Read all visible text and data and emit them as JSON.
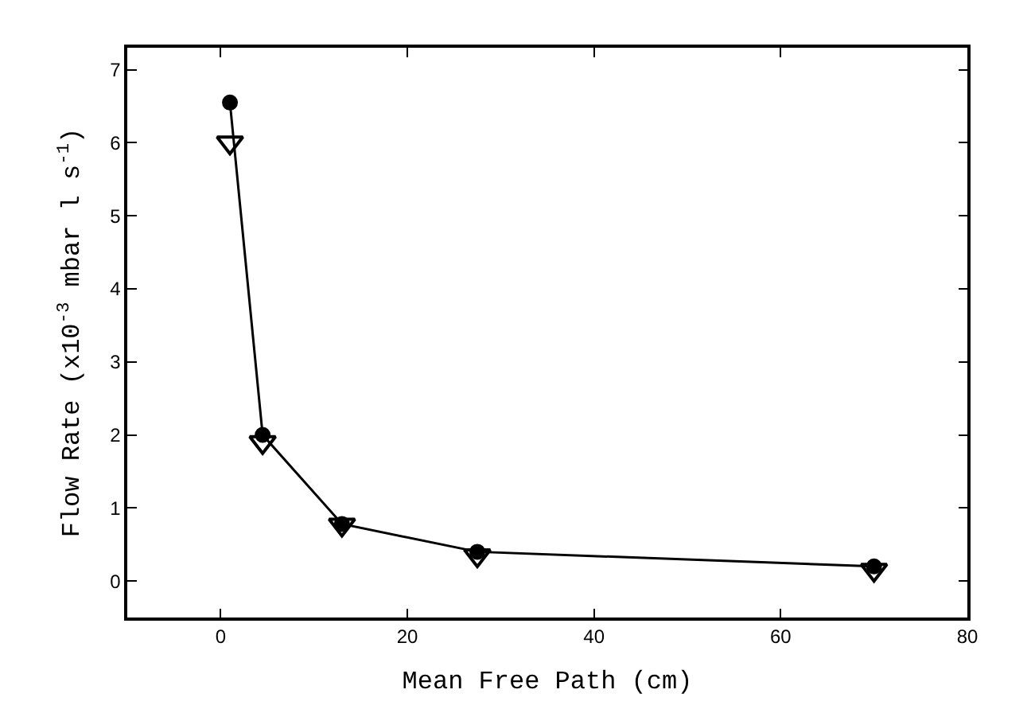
{
  "chart_data": {
    "type": "line",
    "xlabel": "Mean Free Path (cm)",
    "ylabel": "Flow Rate (x10$^{-3}$ mbar l s$^{-1}$)",
    "x": [
      1,
      4.5,
      13,
      27.5,
      70
    ],
    "series": [
      {
        "color": "#000000",
        "values": [
          6.55,
          2.0,
          0.78,
          0.4,
          0.2
        ],
        "marker": "circle",
        "line_style": "solid"
      },
      {
        "type": "scatter",
        "color": "#000000",
        "values": [
          6.0,
          1.9,
          0.77,
          0.35,
          0.15
        ],
        "marker": "triangle"
      }
    ],
    "xlim": [
      -10,
      80
    ],
    "xticks": [
      0,
      20,
      40,
      60,
      80
    ],
    "ylim": [
      -0.5,
      7.3
    ],
    "yticks": [
      0,
      1,
      2,
      3,
      4,
      5,
      6,
      7
    ]
  }
}
